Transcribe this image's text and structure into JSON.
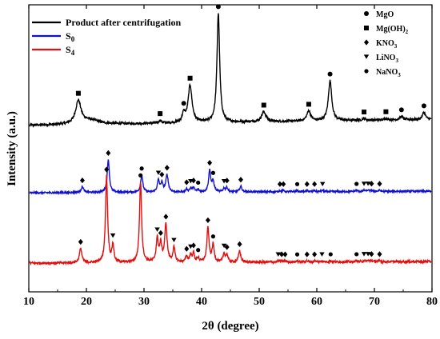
{
  "chart_data": {
    "type": "line",
    "title": "",
    "xlabel": "2θ (degree)",
    "ylabel": "Intensity (a.u.)",
    "xlim": [
      10,
      80
    ],
    "xticks": [
      10,
      20,
      30,
      40,
      50,
      60,
      70,
      80
    ],
    "y_ticks_shown": false,
    "grid": false,
    "legend_position": "top-left",
    "series": [
      {
        "name": "Product after centrifugation",
        "color": "#000000",
        "baseline": 0.58,
        "noise": 0.004,
        "slope": 0.0003,
        "peaks": [
          {
            "x": 18.6,
            "h": 0.08,
            "w": 0.55,
            "marker": "square"
          },
          {
            "x": 20.6,
            "h": 0.015,
            "w": 1.8
          },
          {
            "x": 32.8,
            "h": 0.01,
            "w": 0.25,
            "marker": "square"
          },
          {
            "x": 36.9,
            "h": 0.03,
            "w": 0.3,
            "marker": "circle"
          },
          {
            "x": 38.0,
            "h": 0.13,
            "w": 0.4,
            "marker": "square"
          },
          {
            "x": 42.9,
            "h": 0.38,
            "w": 0.28,
            "marker": "circle"
          },
          {
            "x": 50.8,
            "h": 0.035,
            "w": 0.45,
            "marker": "square"
          },
          {
            "x": 58.6,
            "h": 0.035,
            "w": 0.4,
            "marker": "square"
          },
          {
            "x": 62.3,
            "h": 0.14,
            "w": 0.35,
            "marker": "circle"
          },
          {
            "x": 68.2,
            "h": 0.006,
            "w": 0.3,
            "marker": "square"
          },
          {
            "x": 72.0,
            "h": 0.006,
            "w": 0.3,
            "marker": "square"
          },
          {
            "x": 74.7,
            "h": 0.012,
            "w": 0.3,
            "marker": "circle"
          },
          {
            "x": 78.6,
            "h": 0.025,
            "w": 0.3,
            "marker": "circle"
          }
        ]
      },
      {
        "name": "S0",
        "color": "#1010d0",
        "baseline": 0.345,
        "noise": 0.003,
        "slope": 8e-05,
        "peaks": [
          {
            "x": 19.3,
            "h": 0.02,
            "w": 0.25,
            "marker": "diamond"
          },
          {
            "x": 23.8,
            "h": 0.115,
            "w": 0.22,
            "marker": "diamond"
          },
          {
            "x": 29.6,
            "h": 0.06,
            "w": 0.22,
            "marker": "circle-small"
          },
          {
            "x": 32.5,
            "h": 0.04,
            "w": 0.22,
            "marker": "triangle"
          },
          {
            "x": 33.1,
            "h": 0.03,
            "w": 0.22,
            "marker": "diamond"
          },
          {
            "x": 34.0,
            "h": 0.06,
            "w": 0.25,
            "marker": "diamond"
          },
          {
            "x": 37.4,
            "h": 0.01,
            "w": 0.2,
            "marker": "diamond"
          },
          {
            "x": 38.1,
            "h": 0.012,
            "w": 0.2,
            "marker": "triangle"
          },
          {
            "x": 38.6,
            "h": 0.015,
            "w": 0.2,
            "marker": "diamond"
          },
          {
            "x": 39.4,
            "h": 0.008,
            "w": 0.2,
            "marker": "circle-small"
          },
          {
            "x": 41.4,
            "h": 0.075,
            "w": 0.22,
            "marker": "diamond"
          },
          {
            "x": 42.0,
            "h": 0.035,
            "w": 0.22,
            "marker": "circle-small"
          },
          {
            "x": 43.9,
            "h": 0.012,
            "w": 0.2,
            "marker": "triangle"
          },
          {
            "x": 44.4,
            "h": 0.015,
            "w": 0.2,
            "marker": "diamond"
          },
          {
            "x": 46.8,
            "h": 0.02,
            "w": 0.22,
            "marker": "diamond"
          },
          {
            "x": 53.6,
            "h": 0.004,
            "w": 0.2,
            "marker": "diamond"
          },
          {
            "x": 54.2,
            "h": 0.004,
            "w": 0.2,
            "marker": "diamond"
          },
          {
            "x": 56.6,
            "h": 0.004,
            "w": 0.2,
            "marker": "circle-small"
          },
          {
            "x": 58.3,
            "h": 0.004,
            "w": 0.2,
            "marker": "diamond"
          },
          {
            "x": 59.6,
            "h": 0.004,
            "w": 0.2,
            "marker": "diamond"
          },
          {
            "x": 61.0,
            "h": 0.004,
            "w": 0.2,
            "marker": "triangle"
          },
          {
            "x": 66.9,
            "h": 0.004,
            "w": 0.2,
            "marker": "circle-small"
          },
          {
            "x": 68.2,
            "h": 0.004,
            "w": 0.2,
            "marker": "triangle"
          },
          {
            "x": 68.9,
            "h": 0.004,
            "w": 0.2,
            "marker": "triangle"
          },
          {
            "x": 69.5,
            "h": 0.004,
            "w": 0.2,
            "marker": "diamond"
          },
          {
            "x": 70.9,
            "h": 0.004,
            "w": 0.2,
            "marker": "diamond"
          }
        ]
      },
      {
        "name": "S4",
        "color": "#e01010",
        "baseline": 0.1,
        "noise": 0.004,
        "slope": 8e-05,
        "peaks": [
          {
            "x": 19.0,
            "h": 0.05,
            "w": 0.25,
            "marker": "diamond"
          },
          {
            "x": 23.5,
            "h": 0.3,
            "w": 0.22,
            "marker": "diamond"
          },
          {
            "x": 24.6,
            "h": 0.06,
            "w": 0.2,
            "marker": "triangle"
          },
          {
            "x": 29.4,
            "h": 0.28,
            "w": 0.22,
            "marker": "circle-small"
          },
          {
            "x": 32.3,
            "h": 0.08,
            "w": 0.22,
            "marker": "triangle"
          },
          {
            "x": 32.9,
            "h": 0.06,
            "w": 0.22,
            "marker": "diamond"
          },
          {
            "x": 33.8,
            "h": 0.13,
            "w": 0.25,
            "marker": "diamond"
          },
          {
            "x": 35.2,
            "h": 0.05,
            "w": 0.22,
            "marker": "triangle"
          },
          {
            "x": 37.4,
            "h": 0.02,
            "w": 0.2,
            "marker": "diamond"
          },
          {
            "x": 38.1,
            "h": 0.025,
            "w": 0.2,
            "marker": "triangle"
          },
          {
            "x": 38.6,
            "h": 0.03,
            "w": 0.2,
            "marker": "diamond"
          },
          {
            "x": 39.4,
            "h": 0.015,
            "w": 0.2,
            "marker": "circle-small"
          },
          {
            "x": 41.1,
            "h": 0.12,
            "w": 0.22,
            "marker": "diamond"
          },
          {
            "x": 42.0,
            "h": 0.06,
            "w": 0.22,
            "marker": "circle-small"
          },
          {
            "x": 43.9,
            "h": 0.03,
            "w": 0.2,
            "marker": "triangle"
          },
          {
            "x": 44.4,
            "h": 0.025,
            "w": 0.2,
            "marker": "diamond"
          },
          {
            "x": 46.6,
            "h": 0.04,
            "w": 0.22,
            "marker": "diamond"
          },
          {
            "x": 53.3,
            "h": 0.004,
            "w": 0.2,
            "marker": "triangle"
          },
          {
            "x": 53.9,
            "h": 0.004,
            "w": 0.2,
            "marker": "diamond"
          },
          {
            "x": 54.5,
            "h": 0.004,
            "w": 0.2,
            "marker": "diamond"
          },
          {
            "x": 56.6,
            "h": 0.004,
            "w": 0.2,
            "marker": "circle-small"
          },
          {
            "x": 58.3,
            "h": 0.004,
            "w": 0.2,
            "marker": "diamond"
          },
          {
            "x": 59.6,
            "h": 0.004,
            "w": 0.2,
            "marker": "diamond"
          },
          {
            "x": 60.9,
            "h": 0.004,
            "w": 0.2,
            "marker": "triangle"
          },
          {
            "x": 62.4,
            "h": 0.004,
            "w": 0.2,
            "marker": "circle-small"
          },
          {
            "x": 66.9,
            "h": 0.004,
            "w": 0.2,
            "marker": "circle-small"
          },
          {
            "x": 68.2,
            "h": 0.004,
            "w": 0.2,
            "marker": "triangle"
          },
          {
            "x": 68.9,
            "h": 0.004,
            "w": 0.2,
            "marker": "triangle"
          },
          {
            "x": 69.5,
            "h": 0.004,
            "w": 0.2,
            "marker": "diamond"
          },
          {
            "x": 70.9,
            "h": 0.004,
            "w": 0.2,
            "marker": "diamond"
          }
        ]
      }
    ],
    "legend": [
      {
        "label": "Product after centrifugation",
        "color": "#000000"
      },
      {
        "label_main": "S",
        "label_sub": "0",
        "color": "#1010d0"
      },
      {
        "label_main": "S",
        "label_sub": "4",
        "color": "#e01010"
      }
    ],
    "phase_legend": [
      {
        "marker": "circle",
        "label_main": "MgO",
        "label_sub": ""
      },
      {
        "marker": "square",
        "label_main": "Mg(OH)",
        "label_sub": "2"
      },
      {
        "marker": "diamond",
        "label_main": "KNO",
        "label_sub": "3"
      },
      {
        "marker": "triangle",
        "label_main": "LiNO",
        "label_sub": "3"
      },
      {
        "marker": "circle-small",
        "label_main": "NaNO",
        "label_sub": "3"
      }
    ]
  }
}
